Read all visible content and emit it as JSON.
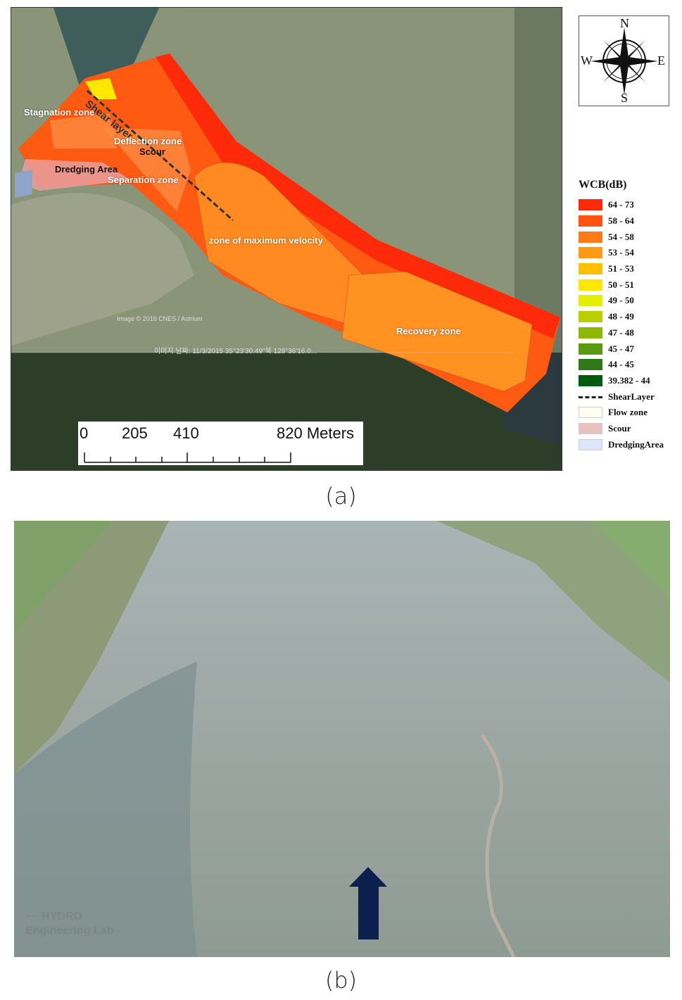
{
  "panel_a": {
    "caption": "(a)",
    "zone_labels": {
      "stagnation": "Stagnation zone",
      "shear_layer": "Shear layer",
      "deflection": "Deflection zone",
      "scour": "Scour",
      "dredging": "Dredging Area",
      "separation": "Separation zone",
      "max_velocity": "zone of maximum velocity",
      "recovery": "Recovery zone"
    },
    "imagery_credit": "Image © 2016 CNES / Astrium",
    "imagery_date": "이미지 날짜: 11/3/2015    35°23'30.49\"북  128°36'16.0...",
    "scale_bar": {
      "labels": [
        "0",
        "205",
        "410",
        "820 Meters"
      ]
    },
    "compass": {
      "n": "N",
      "s": "S",
      "e": "E",
      "w": "W"
    },
    "legend": {
      "title": "WCB(dB)",
      "classes": [
        {
          "label": "64 - 73",
          "color": "#ff2a0a"
        },
        {
          "label": "58 - 64",
          "color": "#ff5510"
        },
        {
          "label": "54 - 58",
          "color": "#ff7a18"
        },
        {
          "label": "53 - 54",
          "color": "#ff9a14"
        },
        {
          "label": "51 - 53",
          "color": "#ffc000"
        },
        {
          "label": "50 - 51",
          "color": "#ffe800"
        },
        {
          "label": "49 - 50",
          "color": "#e2ef00"
        },
        {
          "label": "48 - 49",
          "color": "#b8d000"
        },
        {
          "label": "47 - 48",
          "color": "#8cb800"
        },
        {
          "label": "45 - 47",
          "color": "#5a9a10"
        },
        {
          "label": "44 - 45",
          "color": "#2e7a18"
        },
        {
          "label": "39.382 - 44",
          "color": "#005a10"
        }
      ],
      "shear_layer": "ShearLayer",
      "flow_zone": {
        "label": "Flow zone",
        "color": "#fffdf0"
      },
      "scour": {
        "label": "Scour",
        "color": "#e8c0c0"
      },
      "dredging": {
        "label": "DredgingArea",
        "color": "#dce6fa"
      }
    }
  },
  "panel_b": {
    "caption": "(b)",
    "watermark": "HYDRO Engineering Lab",
    "arrow_color": "#0d1f4f"
  }
}
